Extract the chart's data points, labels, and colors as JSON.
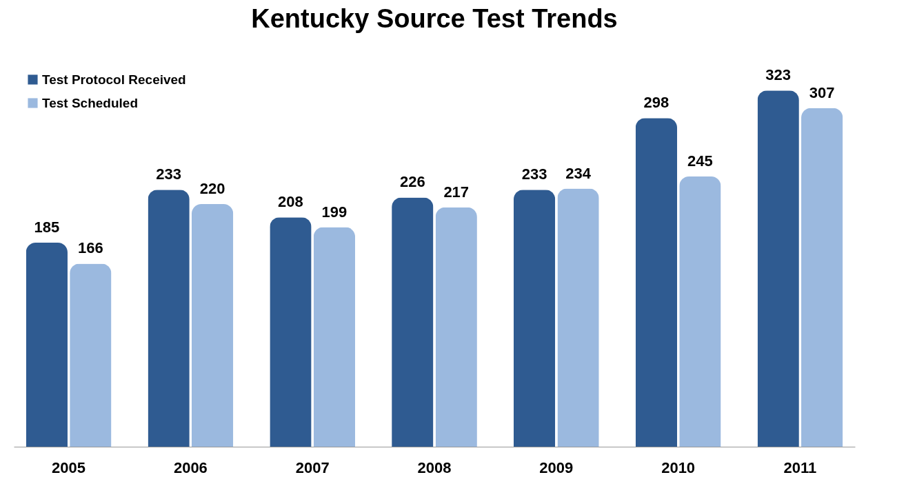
{
  "chart_data": {
    "type": "bar",
    "title": "Kentucky Source Test Trends",
    "categories": [
      "2005",
      "2006",
      "2007",
      "2008",
      "2009",
      "2010",
      "2011"
    ],
    "series": [
      {
        "name": "Test Protocol Received",
        "color": "#2f5b91",
        "values": [
          185,
          233,
          208,
          226,
          233,
          298,
          323
        ]
      },
      {
        "name": "Test Scheduled",
        "color": "#9bb9df",
        "values": [
          166,
          220,
          199,
          217,
          234,
          245,
          307
        ]
      }
    ],
    "data_labels": true,
    "legend": "top left",
    "grid": false
  }
}
